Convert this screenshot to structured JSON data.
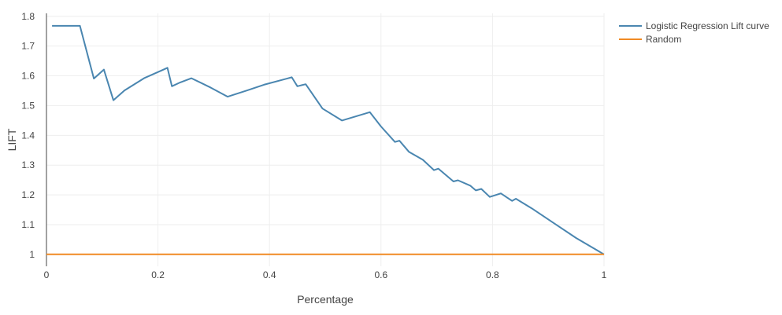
{
  "chart_data": {
    "type": "line",
    "xlabel": "Percentage",
    "ylabel": "LIFT",
    "xlim": [
      0,
      1
    ],
    "ylim": [
      0.96,
      1.81
    ],
    "grid": true,
    "legend_position": "top-right",
    "x_ticks": [
      {
        "value": 0,
        "label": "0"
      },
      {
        "value": 0.2,
        "label": "0.2"
      },
      {
        "value": 0.4,
        "label": "0.4"
      },
      {
        "value": 0.6,
        "label": "0.6"
      },
      {
        "value": 0.8,
        "label": "0.8"
      },
      {
        "value": 1,
        "label": "1"
      }
    ],
    "y_ticks": [
      {
        "value": 1,
        "label": "1"
      },
      {
        "value": 1.1,
        "label": "1.1"
      },
      {
        "value": 1.2,
        "label": "1.2"
      },
      {
        "value": 1.3,
        "label": "1.3"
      },
      {
        "value": 1.4,
        "label": "1.4"
      },
      {
        "value": 1.5,
        "label": "1.5"
      },
      {
        "value": 1.6,
        "label": "1.6"
      },
      {
        "value": 1.7,
        "label": "1.7"
      },
      {
        "value": 1.8,
        "label": "1.8"
      }
    ],
    "series": [
      {
        "name": "Logistic Regression Lift curve",
        "color": "#4a86b0",
        "points": [
          [
            0.01,
            1.768
          ],
          [
            0.06,
            1.768
          ],
          [
            0.085,
            1.591
          ],
          [
            0.103,
            1.621
          ],
          [
            0.12,
            1.518
          ],
          [
            0.14,
            1.551
          ],
          [
            0.175,
            1.592
          ],
          [
            0.21,
            1.621
          ],
          [
            0.217,
            1.627
          ],
          [
            0.225,
            1.565
          ],
          [
            0.24,
            1.578
          ],
          [
            0.26,
            1.592
          ],
          [
            0.295,
            1.56
          ],
          [
            0.325,
            1.53
          ],
          [
            0.36,
            1.551
          ],
          [
            0.39,
            1.57
          ],
          [
            0.43,
            1.59
          ],
          [
            0.44,
            1.595
          ],
          [
            0.45,
            1.565
          ],
          [
            0.465,
            1.572
          ],
          [
            0.495,
            1.49
          ],
          [
            0.53,
            1.45
          ],
          [
            0.58,
            1.478
          ],
          [
            0.6,
            1.43
          ],
          [
            0.625,
            1.378
          ],
          [
            0.633,
            1.382
          ],
          [
            0.65,
            1.345
          ],
          [
            0.675,
            1.318
          ],
          [
            0.695,
            1.283
          ],
          [
            0.703,
            1.288
          ],
          [
            0.73,
            1.245
          ],
          [
            0.738,
            1.249
          ],
          [
            0.76,
            1.231
          ],
          [
            0.77,
            1.215
          ],
          [
            0.78,
            1.22
          ],
          [
            0.795,
            1.193
          ],
          [
            0.815,
            1.205
          ],
          [
            0.835,
            1.18
          ],
          [
            0.842,
            1.187
          ],
          [
            0.87,
            1.155
          ],
          [
            0.91,
            1.105
          ],
          [
            0.95,
            1.055
          ],
          [
            1.0,
            1.0
          ]
        ]
      },
      {
        "name": "Random",
        "color": "#f08a24",
        "points": [
          [
            0,
            1.0
          ],
          [
            1,
            1.0
          ]
        ]
      }
    ]
  }
}
